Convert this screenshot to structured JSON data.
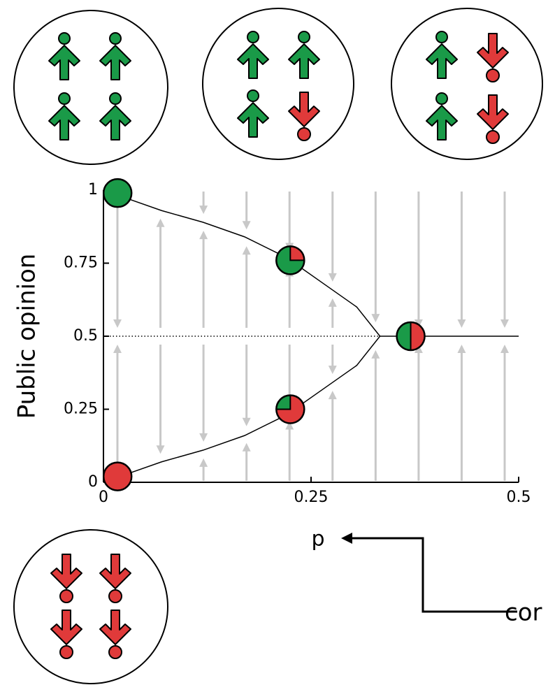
{
  "chart_data": {
    "type": "line",
    "x_label": "p",
    "y_label": "Public opinion",
    "annotation": "cor",
    "xlim": [
      0,
      0.5
    ],
    "xticks": [
      0,
      0.25,
      0.5
    ],
    "ylim": [
      0,
      1
    ],
    "yticks": [
      0,
      0.25,
      0.5,
      0.75,
      1
    ],
    "series": [
      {
        "color": "#000000",
        "style": "solid",
        "x": [
          0.03,
          0.07,
          0.12,
          0.17,
          0.22,
          0.27,
          0.305,
          0.333,
          0.305,
          0.27,
          0.22,
          0.17,
          0.12,
          0.07,
          0.03
        ],
        "values": [
          0.97,
          0.93,
          0.89,
          0.84,
          0.77,
          0.67,
          0.6,
          0.5,
          0.4,
          0.33,
          0.23,
          0.16,
          0.11,
          0.07,
          0.03
        ]
      },
      {
        "color": "#000000",
        "style": "dotted",
        "x": [
          0,
          0.333
        ],
        "values": [
          0.5,
          0.5
        ]
      },
      {
        "color": "#000000",
        "style": "solid",
        "x": [
          0.333,
          0.5
        ],
        "values": [
          0.5,
          0.5
        ]
      }
    ],
    "markers": {
      "x": [
        0.017,
        0.225,
        0.37,
        0.225,
        0.017
      ],
      "values": [
        0.99,
        0.76,
        0.5,
        0.25,
        0.02
      ],
      "green_share": [
        1,
        0.75,
        0.5,
        0.25,
        0
      ],
      "colors": [
        "#1a9a48",
        "#e03a3a"
      ]
    },
    "flow_color": "#c8c8c8"
  }
}
